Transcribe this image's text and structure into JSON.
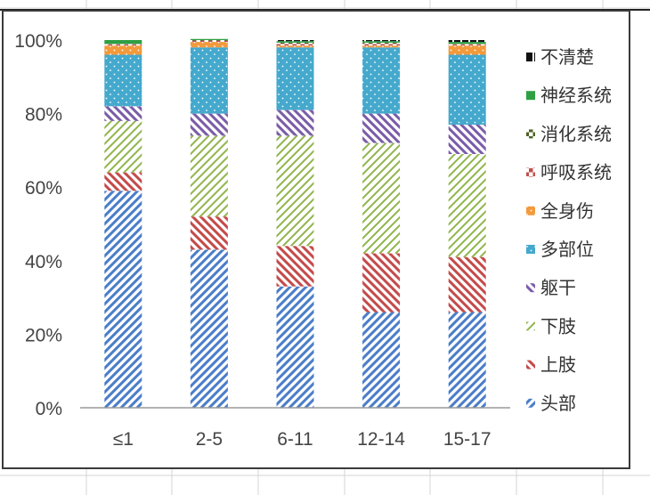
{
  "chart_data": {
    "type": "bar",
    "stacked": true,
    "percent": true,
    "categories": [
      "≤1",
      "2-5",
      "6-11",
      "12-14",
      "15-17"
    ],
    "yticks": [
      "0%",
      "20%",
      "40%",
      "60%",
      "80%",
      "100%"
    ],
    "ylim": [
      0,
      100
    ],
    "legend_position": "right",
    "series": [
      {
        "name": "头部",
        "color": "#4a7dc8",
        "values": [
          59,
          43,
          33,
          26,
          26
        ]
      },
      {
        "name": "上肢",
        "color": "#c44a4a",
        "values": [
          5,
          9,
          11,
          16,
          15
        ]
      },
      {
        "name": "下肢",
        "color": "#8fb54a",
        "values": [
          14,
          22,
          30,
          30,
          28
        ]
      },
      {
        "name": "躯干",
        "color": "#7a5ca8",
        "values": [
          4,
          6,
          7,
          8,
          8
        ]
      },
      {
        "name": "多部位",
        "color": "#45a9cd",
        "values": [
          14,
          18,
          17,
          18,
          19
        ]
      },
      {
        "name": "全身伤",
        "color": "#f29a3c",
        "values": [
          2.5,
          1.5,
          0.5,
          0.5,
          2.5
        ]
      },
      {
        "name": "呼吸系统",
        "color": "#c0504d",
        "values": [
          0.3,
          0.3,
          0.5,
          0.5,
          0.3
        ]
      },
      {
        "name": "消化系统",
        "color": "#4f6228",
        "values": [
          0.2,
          0.2,
          0.3,
          0.3,
          0.2
        ]
      },
      {
        "name": "神经系统",
        "color": "#2ea043",
        "values": [
          1,
          0.3,
          0.4,
          0.4,
          0.5
        ]
      },
      {
        "name": "不清楚",
        "color": "#111111",
        "values": [
          0,
          0,
          0.3,
          0.3,
          0.5
        ]
      }
    ]
  }
}
